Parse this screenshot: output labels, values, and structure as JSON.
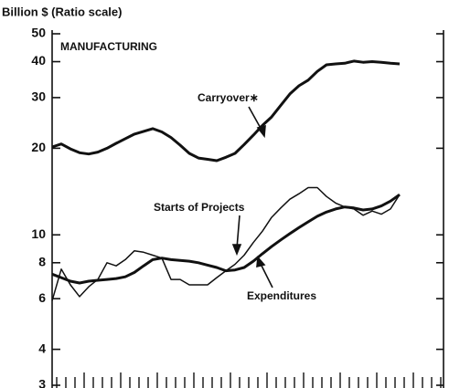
{
  "chart_data": {
    "type": "line",
    "y_label": "Billion $ (Ratio scale)",
    "panel_label": "MANUFACTURING",
    "annotations": [
      "Carryover∗",
      "Starts of Projects",
      "Expenditures"
    ],
    "log_scale": true,
    "ylim": [
      3,
      50
    ],
    "yticks": [
      3,
      4,
      6,
      8,
      10,
      20,
      30,
      40,
      50
    ],
    "categories": [
      null,
      null,
      null,
      null,
      null,
      null,
      null,
      null,
      null,
      null,
      null,
      null,
      null,
      null,
      null,
      null,
      null,
      null,
      null,
      null,
      null,
      null,
      null,
      null,
      null,
      null,
      null,
      null,
      null,
      null,
      null,
      null,
      null,
      null,
      null,
      null,
      null,
      null,
      null,
      null,
      null,
      null,
      null
    ],
    "series": [
      {
        "name": "Carryover∗",
        "color": "#111111",
        "width": 3,
        "values": [
          20.2,
          20.7,
          19.9,
          19.3,
          19.1,
          19.4,
          20,
          20.8,
          21.6,
          22.4,
          22.9,
          23.4,
          22.8,
          21.8,
          20.5,
          19.2,
          18.5,
          18.3,
          18.1,
          18.6,
          19.2,
          20.6,
          22.2,
          24,
          25.7,
          28.2,
          30.9,
          33,
          34.5,
          37,
          39,
          39.3,
          39.5,
          40.2,
          39.8,
          40,
          39.8,
          39.5,
          39.3,
          null,
          null,
          null,
          null
        ]
      },
      {
        "name": "Starts of Projects",
        "color": "#111111",
        "width": 1.5,
        "values": [
          5.9,
          7.6,
          6.7,
          6.1,
          6.6,
          7,
          8,
          7.8,
          8.2,
          8.8,
          8.7,
          8.5,
          8.3,
          7,
          7,
          6.7,
          6.7,
          6.7,
          7.1,
          7.5,
          7.9,
          8.5,
          9.4,
          10.3,
          11.5,
          12.4,
          13.3,
          13.9,
          14.6,
          14.6,
          13.6,
          12.9,
          12.5,
          12.3,
          11.7,
          12.1,
          11.8,
          12.3,
          13.8,
          null,
          null,
          null,
          null
        ]
      },
      {
        "name": "Expenditures",
        "color": "#111111",
        "width": 3,
        "values": [
          7.3,
          7.1,
          6.9,
          6.8,
          6.9,
          6.95,
          7,
          7.05,
          7.15,
          7.4,
          7.8,
          8.2,
          8.3,
          8.2,
          8.15,
          8.1,
          8,
          7.85,
          7.7,
          7.5,
          7.55,
          7.7,
          8.1,
          8.6,
          9.1,
          9.6,
          10.1,
          10.6,
          11.1,
          11.6,
          12,
          12.3,
          12.5,
          12.4,
          12.2,
          12.3,
          12.6,
          13.1,
          13.8,
          null,
          null,
          null,
          null
        ]
      }
    ]
  }
}
